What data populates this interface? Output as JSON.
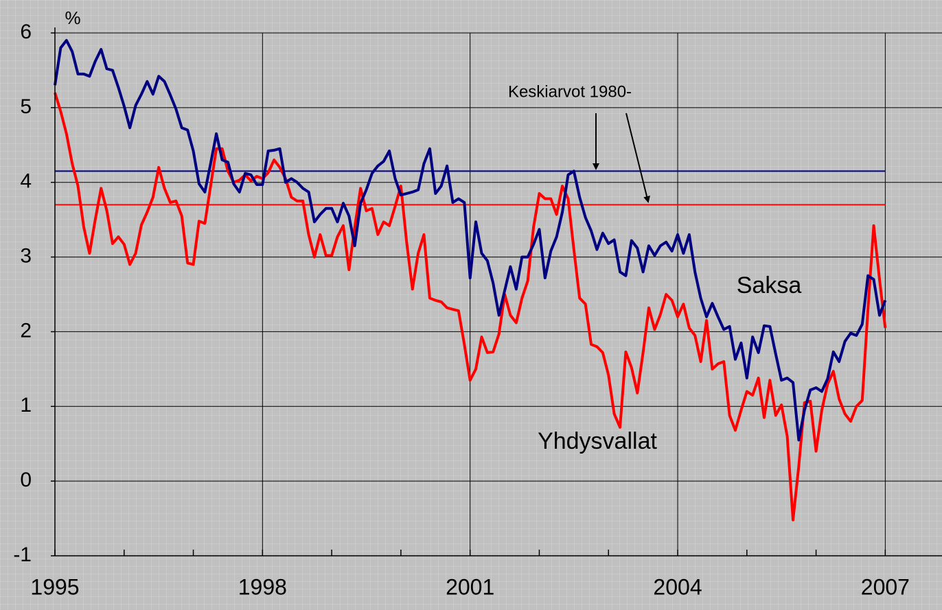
{
  "chart_data": {
    "type": "line",
    "ylabel": "%",
    "annotation": "Keskiarvot 1980-",
    "xlim": [
      1995,
      2007.82
    ],
    "ylim": [
      -1,
      6
    ],
    "xticks": [
      1995,
      1998,
      2001,
      2004,
      2007
    ],
    "xminorticks": [
      1996,
      1997,
      1999,
      2000,
      2002,
      2003,
      2005,
      2006
    ],
    "yticks": [
      -1,
      0,
      1,
      2,
      3,
      4,
      5,
      6
    ],
    "grid": true,
    "x": [
      1995,
      1995.083,
      1995.167,
      1995.25,
      1995.333,
      1995.417,
      1995.5,
      1995.583,
      1995.667,
      1995.75,
      1995.833,
      1995.917,
      1996,
      1996.083,
      1996.167,
      1996.25,
      1996.333,
      1996.417,
      1996.5,
      1996.583,
      1996.667,
      1996.75,
      1996.833,
      1996.917,
      1997,
      1997.083,
      1997.167,
      1997.25,
      1997.333,
      1997.417,
      1997.5,
      1997.583,
      1997.667,
      1997.75,
      1997.833,
      1997.917,
      1998,
      1998.083,
      1998.167,
      1998.25,
      1998.333,
      1998.417,
      1998.5,
      1998.583,
      1998.667,
      1998.75,
      1998.833,
      1998.917,
      1999,
      1999.083,
      1999.167,
      1999.25,
      1999.333,
      1999.417,
      1999.5,
      1999.583,
      1999.667,
      1999.75,
      1999.833,
      1999.917,
      2000,
      2000.083,
      2000.167,
      2000.25,
      2000.333,
      2000.417,
      2000.5,
      2000.583,
      2000.667,
      2000.75,
      2000.833,
      2000.917,
      2001,
      2001.083,
      2001.167,
      2001.25,
      2001.333,
      2001.417,
      2001.5,
      2001.583,
      2001.667,
      2001.75,
      2001.833,
      2001.917,
      2002,
      2002.083,
      2002.167,
      2002.25,
      2002.333,
      2002.417,
      2002.5,
      2002.583,
      2002.667,
      2002.75,
      2002.833,
      2002.917,
      2003,
      2003.083,
      2003.167,
      2003.25,
      2003.333,
      2003.417,
      2003.5,
      2003.583,
      2003.667,
      2003.75,
      2003.833,
      2003.917,
      2004,
      2004.083,
      2004.167,
      2004.25,
      2004.333,
      2004.417,
      2004.5,
      2004.583,
      2004.667,
      2004.75,
      2004.833,
      2004.917,
      2005,
      2005.083,
      2005.167,
      2005.25,
      2005.333,
      2005.417,
      2005.5,
      2005.583,
      2005.667,
      2005.75,
      2005.833,
      2005.917,
      2006,
      2006.083,
      2006.167,
      2006.25,
      2006.333,
      2006.417,
      2006.5,
      2006.583,
      2006.667,
      2006.75,
      2006.833,
      2006.917,
      2007
    ],
    "series": [
      {
        "name": "Saksa",
        "color": "#000080",
        "values": [
          5.3,
          5.8,
          5.9,
          5.75,
          5.45,
          5.45,
          5.42,
          5.62,
          5.78,
          5.52,
          5.5,
          5.27,
          5.02,
          4.73,
          5.03,
          5.18,
          5.35,
          5.18,
          5.42,
          5.35,
          5.17,
          4.98,
          4.73,
          4.7,
          4.42,
          3.98,
          3.87,
          4.25,
          4.65,
          4.3,
          4.27,
          3.98,
          3.87,
          4.12,
          4.1,
          3.97,
          3.97,
          4.42,
          4.43,
          4.45,
          4.0,
          4.05,
          4.0,
          3.92,
          3.87,
          3.47,
          3.57,
          3.65,
          3.65,
          3.47,
          3.72,
          3.55,
          3.15,
          3.72,
          3.9,
          4.12,
          4.22,
          4.28,
          4.42,
          4.05,
          3.83,
          3.85,
          3.87,
          3.9,
          4.25,
          4.45,
          3.85,
          3.95,
          4.22,
          3.73,
          3.78,
          3.73,
          2.72,
          3.47,
          3.05,
          2.95,
          2.65,
          2.22,
          2.55,
          2.87,
          2.57,
          3.0,
          3.0,
          3.17,
          3.37,
          2.72,
          3.08,
          3.27,
          3.6,
          4.1,
          4.15,
          3.8,
          3.53,
          3.35,
          3.1,
          3.32,
          3.18,
          3.23,
          2.8,
          2.75,
          3.22,
          3.12,
          2.8,
          3.15,
          3.02,
          3.15,
          3.2,
          3.08,
          3.3,
          3.05,
          3.3,
          2.8,
          2.45,
          2.2,
          2.38,
          2.2,
          2.03,
          2.07,
          1.63,
          1.85,
          1.38,
          1.93,
          1.72,
          2.08,
          2.07,
          1.7,
          1.35,
          1.38,
          1.32,
          0.55,
          0.95,
          1.22,
          1.25,
          1.2,
          1.37,
          1.73,
          1.6,
          1.87,
          1.98,
          1.95,
          2.1,
          2.75,
          2.7,
          2.22,
          2.42
        ]
      },
      {
        "name": "Yhdysvallat",
        "color": "#ff0000",
        "values": [
          5.2,
          4.95,
          4.65,
          4.25,
          3.95,
          3.4,
          3.05,
          3.5,
          3.92,
          3.62,
          3.18,
          3.27,
          3.17,
          2.9,
          3.05,
          3.43,
          3.6,
          3.8,
          4.2,
          3.92,
          3.73,
          3.75,
          3.55,
          2.92,
          2.9,
          3.48,
          3.45,
          3.95,
          4.45,
          4.45,
          4.15,
          4.0,
          4.03,
          4.1,
          4.02,
          4.08,
          4.05,
          4.13,
          4.3,
          4.2,
          4.05,
          3.8,
          3.75,
          3.75,
          3.3,
          3.0,
          3.3,
          3.02,
          3.02,
          3.27,
          3.42,
          2.83,
          3.4,
          3.92,
          3.62,
          3.65,
          3.3,
          3.47,
          3.42,
          3.68,
          3.95,
          3.2,
          2.57,
          3.05,
          3.3,
          2.45,
          2.42,
          2.4,
          2.32,
          2.3,
          2.28,
          1.83,
          1.35,
          1.5,
          1.93,
          1.72,
          1.73,
          1.97,
          2.5,
          2.22,
          2.12,
          2.45,
          2.68,
          3.4,
          3.85,
          3.78,
          3.78,
          3.57,
          3.95,
          3.78,
          3.1,
          2.45,
          2.37,
          1.83,
          1.8,
          1.72,
          1.42,
          0.9,
          0.72,
          1.73,
          1.52,
          1.18,
          1.72,
          2.32,
          2.03,
          2.23,
          2.5,
          2.42,
          2.2,
          2.37,
          2.05,
          1.95,
          1.6,
          2.15,
          1.5,
          1.57,
          1.6,
          0.88,
          0.68,
          0.95,
          1.2,
          1.15,
          1.38,
          0.85,
          1.35,
          0.88,
          1.02,
          0.6,
          -0.52,
          0.2,
          1.05,
          1.07,
          0.4,
          0.95,
          1.3,
          1.47,
          1.1,
          0.9,
          0.8,
          1.0,
          1.08,
          2.3,
          3.42,
          2.7,
          2.05
        ]
      }
    ],
    "reference_lines": [
      {
        "value": 4.15,
        "color": "#000080"
      },
      {
        "value": 3.7,
        "color": "#ff0000"
      }
    ]
  }
}
